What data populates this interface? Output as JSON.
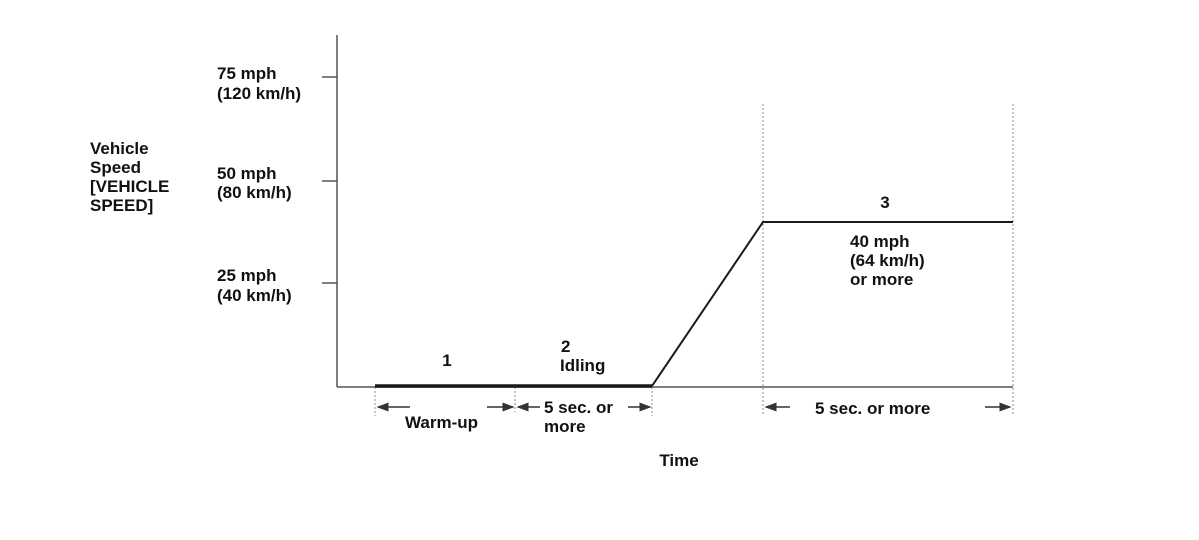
{
  "y_axis": {
    "title_lines": [
      "Vehicle",
      "Speed",
      "[VEHICLE",
      "SPEED]"
    ],
    "ticks": [
      {
        "line1": "75 mph",
        "line2": "(120 km/h)"
      },
      {
        "line1": "50 mph",
        "line2": "(80 km/h)"
      },
      {
        "line1": "25 mph",
        "line2": "(40 km/h)"
      }
    ]
  },
  "x_axis": {
    "title": "Time"
  },
  "phases": {
    "p1": {
      "number": "1",
      "duration": "Warm-up"
    },
    "p2": {
      "number": "2",
      "label": "Idling",
      "duration_line1": "5 sec. or",
      "duration_line2": "more"
    },
    "p3": {
      "number": "3",
      "speed_line1": "40 mph",
      "speed_line2": "(64 km/h)",
      "speed_line3": "or more",
      "duration": "5 sec. or more"
    }
  },
  "colors": {
    "line": "#1a1a1a",
    "axis": "#555555",
    "guide": "#888888"
  }
}
